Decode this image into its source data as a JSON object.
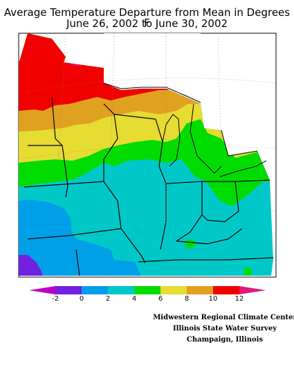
{
  "title": {
    "line1": "Average Temperature Departure from Mean in Degrees F",
    "line2": "June 26, 2002 to June 30, 2002"
  },
  "legend": {
    "labels": [
      "-2",
      "0",
      "2",
      "4",
      "6",
      "8",
      "10",
      "12"
    ],
    "colors": {
      "below_minus2": "#c000c0",
      "m2_0": "#7020e0",
      "0_2": "#00a0e8",
      "2_4": "#00c8c8",
      "4_6": "#00dc00",
      "6_8": "#e6dc32",
      "8_10": "#e0a020",
      "10_12": "#f00000",
      "above_12": "#e01878"
    }
  },
  "credits": {
    "line1": "Midwestern Regional Climate Center",
    "line2": "Illinois State Water Survey",
    "line3": "Champaign, Illinois"
  }
}
